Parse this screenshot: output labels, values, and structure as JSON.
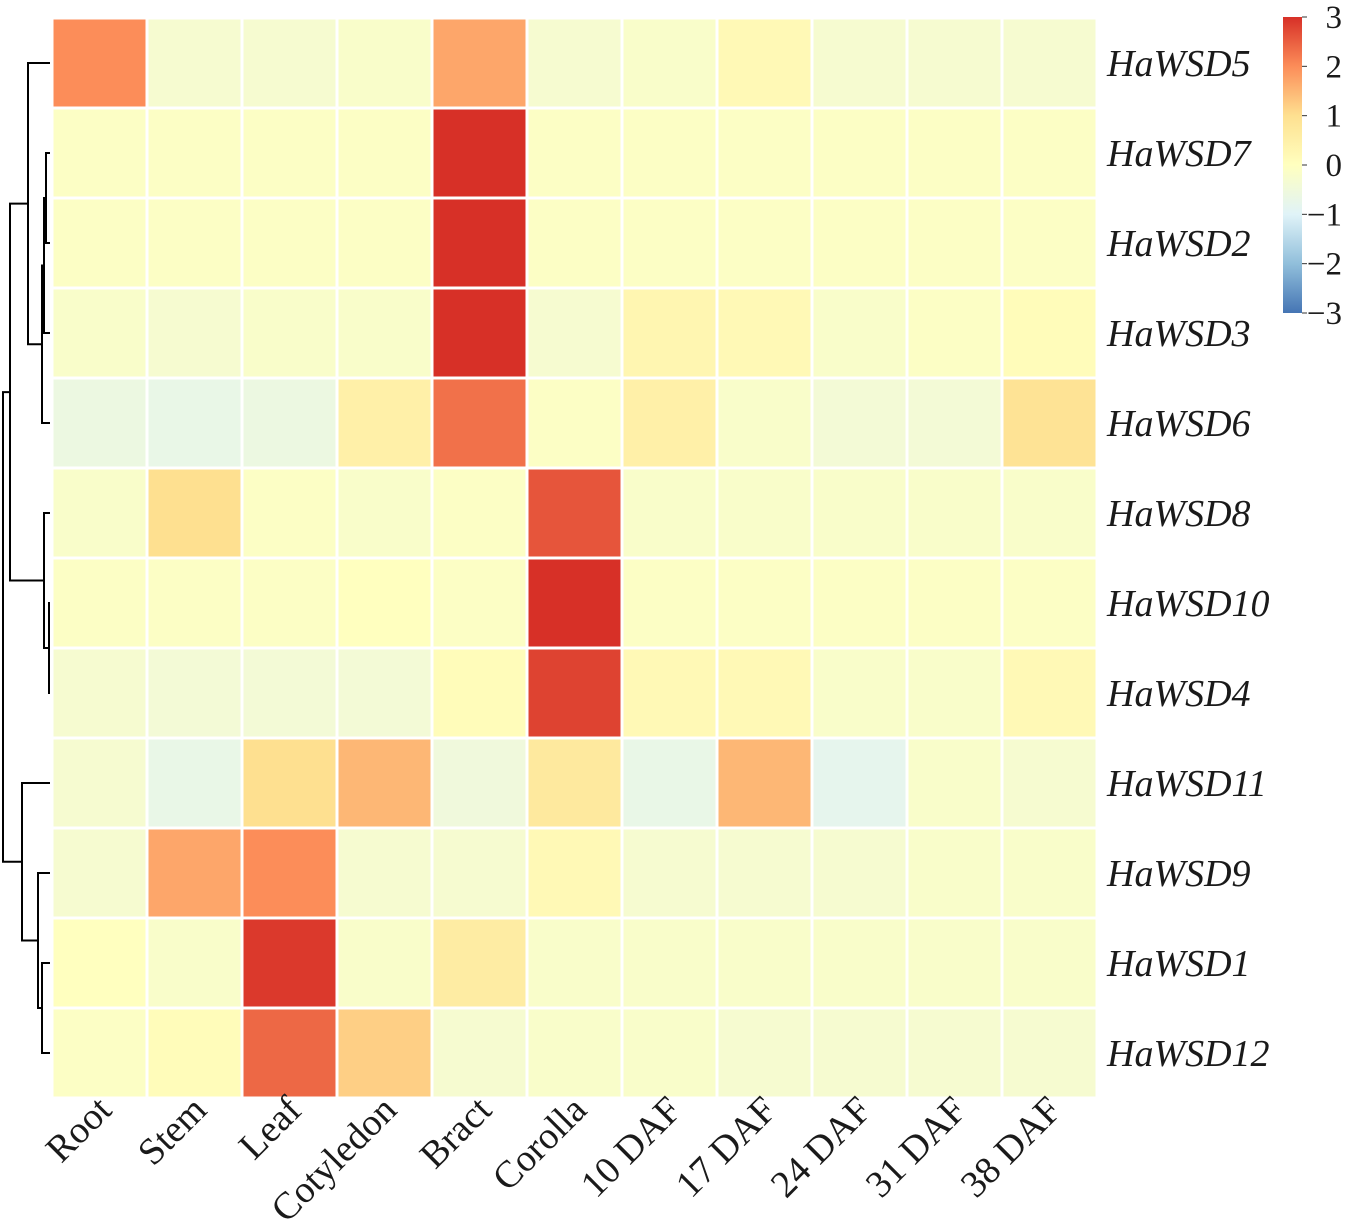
{
  "chart_data": {
    "type": "heatmap",
    "title": "",
    "xlabel": "",
    "ylabel": "",
    "columns": [
      "Root",
      "Stem",
      "Leaf",
      "Cotyledon",
      "Bract",
      "Corolla",
      "10 DAF",
      "17 DAF",
      "24 DAF",
      "31 DAF",
      "38 DAF"
    ],
    "rows": [
      "HaWSD5",
      "HaWSD7",
      "HaWSD2",
      "HaWSD3",
      "HaWSD6",
      "HaWSD8",
      "HaWSD10",
      "HaWSD4",
      "HaWSD11",
      "HaWSD9",
      "HaWSD1",
      "HaWSD12"
    ],
    "values": [
      [
        2.0,
        -0.3,
        -0.3,
        -0.2,
        1.7,
        -0.3,
        -0.2,
        0.2,
        -0.3,
        -0.3,
        -0.3
      ],
      [
        -0.1,
        -0.1,
        -0.1,
        -0.1,
        3.0,
        -0.1,
        -0.1,
        -0.1,
        -0.1,
        -0.1,
        -0.1
      ],
      [
        -0.1,
        -0.1,
        -0.1,
        -0.1,
        3.0,
        -0.1,
        -0.1,
        -0.1,
        -0.1,
        -0.1,
        -0.1
      ],
      [
        -0.2,
        -0.3,
        -0.2,
        -0.2,
        3.0,
        -0.3,
        0.3,
        0.2,
        -0.2,
        -0.1,
        0.1
      ],
      [
        -0.6,
        -0.7,
        -0.6,
        0.5,
        2.3,
        -0.1,
        0.5,
        -0.2,
        -0.4,
        -0.4,
        0.9
      ],
      [
        -0.2,
        1.0,
        -0.1,
        -0.2,
        -0.1,
        2.6,
        -0.2,
        -0.2,
        -0.2,
        -0.2,
        -0.2
      ],
      [
        -0.1,
        -0.1,
        -0.1,
        0.0,
        -0.1,
        3.0,
        -0.1,
        -0.1,
        -0.1,
        -0.1,
        -0.1
      ],
      [
        -0.3,
        -0.4,
        -0.4,
        -0.4,
        0.1,
        2.8,
        0.2,
        0.2,
        -0.2,
        -0.2,
        0.2
      ],
      [
        -0.3,
        -0.7,
        1.0,
        1.5,
        -0.5,
        0.7,
        -0.7,
        1.5,
        -0.8,
        -0.2,
        -0.3
      ],
      [
        -0.3,
        1.7,
        2.0,
        -0.3,
        -0.3,
        0.2,
        -0.3,
        -0.3,
        -0.3,
        -0.2,
        -0.2
      ],
      [
        0.0,
        -0.2,
        2.9,
        -0.2,
        0.6,
        -0.2,
        -0.2,
        -0.2,
        -0.2,
        -0.2,
        -0.2
      ],
      [
        -0.1,
        0.1,
        2.4,
        1.2,
        -0.3,
        -0.2,
        -0.2,
        -0.3,
        -0.3,
        -0.3,
        -0.3
      ]
    ],
    "color_range": [
      -3,
      3
    ],
    "colors": {
      "low": "#4575b4",
      "mid": "#ffffbf",
      "high": "#d73027"
    },
    "legend": {
      "placement": "top-right",
      "ticks": [
        "3",
        "2",
        "1",
        "0",
        "−1",
        "−2",
        "−3"
      ],
      "tick_values": [
        3,
        2,
        1,
        0,
        -1,
        -2,
        -3
      ]
    },
    "row_dendrogram": true,
    "grid": true
  }
}
